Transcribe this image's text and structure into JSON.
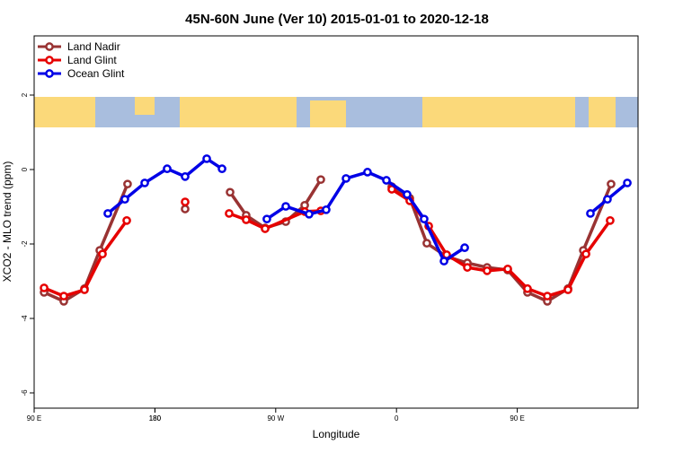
{
  "chart_data": {
    "type": "line",
    "title": "45N-60N June (Ver 10)   2015-01-01 to 2020-12-18",
    "xlabel": "Longitude",
    "ylabel": "XCO2 - MLO trend (ppm)",
    "xlim": [
      90,
      540
    ],
    "ylim": [
      -6.41,
      3.59
    ],
    "xticks": [
      {
        "value": 90,
        "label": "90 E"
      },
      180,
      {
        "value": 270,
        "label": "90 W"
      },
      {
        "value": 360,
        "label": "0"
      },
      {
        "value": 450,
        "label": "90 E"
      },
      180.0001
    ],
    "yticks": [
      -6,
      -4,
      -2,
      0,
      2
    ],
    "legend": "top-left",
    "series": [
      {
        "name": "Land Nadir",
        "color": "#993333",
        "x": [
          97.4,
          112.1,
          127.5,
          138.9,
          159.6,
          181,
          202.5,
          220,
          236.0,
          248.0,
          262.1,
          277.5,
          291.6,
          303.6,
          330,
          356.5,
          369.9,
          382.6,
          397.4,
          412.8,
          427.5,
          442.9,
          457.6,
          472.4,
          487.8,
          499.2,
          519.9
        ],
        "values": [
          -3.3,
          -3.54,
          -3.2,
          -2.17,
          -0.39,
          null,
          -1.06,
          null,
          -0.61,
          -1.23,
          -1.57,
          -1.4,
          -0.96,
          -0.27,
          null,
          -0.46,
          -0.77,
          -1.98,
          -2.34,
          -2.51,
          -2.63,
          -2.7,
          -3.3,
          -3.54,
          -3.2,
          -2.17,
          -0.39
        ]
      },
      {
        "name": "Land Glint",
        "color": "#e60000",
        "x": [
          97.4,
          112.1,
          127.5,
          140.9,
          159.0,
          181,
          202.5,
          220,
          235.3,
          248.0,
          262.1,
          291.6,
          303.6,
          330,
          356.5,
          369.9,
          384.0,
          397.4,
          412.8,
          427.5,
          442.9,
          457.6,
          472.4,
          487.8,
          501.2,
          519.2
        ],
        "values": [
          -3.18,
          -3.4,
          -3.23,
          -2.27,
          -1.37,
          null,
          -0.87,
          null,
          -1.18,
          -1.35,
          -1.59,
          -1.13,
          -1.11,
          null,
          -0.53,
          -0.84,
          -1.52,
          -2.29,
          -2.63,
          -2.72,
          -2.67,
          -3.2,
          -3.4,
          -3.23,
          -2.27,
          -1.37
        ]
      },
      {
        "name": "Ocean Glint",
        "color": "#0000e6",
        "x": [
          144.9,
          157.6,
          172.4,
          189.1,
          202.5,
          218.6,
          230.0,
          245,
          263.4,
          277.5,
          294.9,
          307.6,
          322.4,
          338.4,
          352.5,
          367.9,
          380.6,
          395.4,
          410.8,
          450,
          504.5,
          517.2,
          532.0
        ],
        "values": [
          -1.18,
          -0.8,
          -0.36,
          0.02,
          -0.19,
          0.29,
          0.02,
          null,
          -1.33,
          -0.99,
          -1.2,
          -1.08,
          -0.24,
          -0.07,
          -0.29,
          -0.67,
          -1.33,
          -2.46,
          -2.1,
          null,
          -1.18,
          -0.8,
          -0.36
        ]
      }
    ]
  }
}
